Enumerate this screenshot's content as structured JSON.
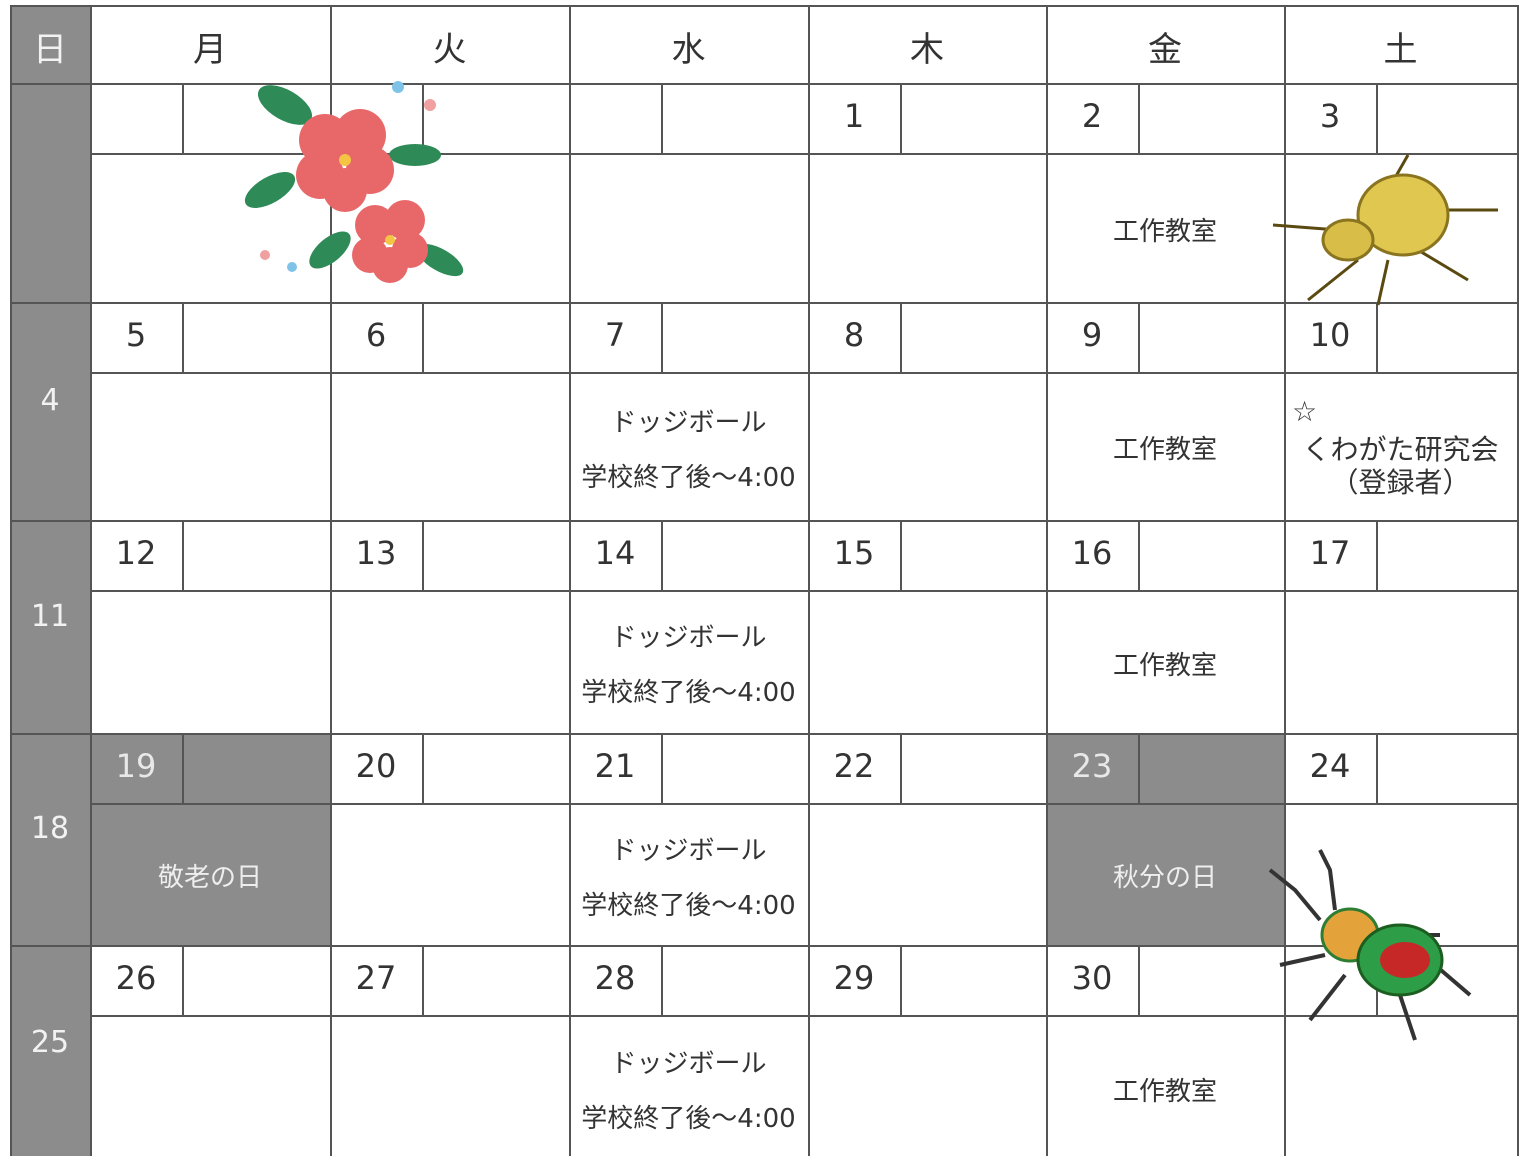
{
  "header": {
    "days": [
      "日",
      "月",
      "火",
      "水",
      "木",
      "金",
      "土"
    ]
  },
  "weeks": [
    {
      "days": [
        null,
        null,
        null,
        {
          "date": "1"
        },
        {
          "date": "2",
          "events": [
            "工作教室"
          ]
        },
        {
          "date": "3"
        }
      ]
    },
    {
      "sunday": "4",
      "days": [
        {
          "date": "5"
        },
        {
          "date": "6"
        },
        {
          "date": "7",
          "events": [
            "ドッジボール",
            "学校終了後〜4:00"
          ]
        },
        {
          "date": "8"
        },
        {
          "date": "9",
          "events": [
            "工作教室"
          ]
        },
        {
          "date": "10",
          "events": [
            "☆",
            "くわがた研究会",
            "（登録者）"
          ]
        }
      ]
    },
    {
      "sunday": "11",
      "days": [
        {
          "date": "12"
        },
        {
          "date": "13"
        },
        {
          "date": "14",
          "events": [
            "ドッジボール",
            "学校終了後〜4:00"
          ]
        },
        {
          "date": "15"
        },
        {
          "date": "16",
          "events": [
            "工作教室"
          ]
        },
        {
          "date": "17"
        }
      ]
    },
    {
      "sunday": "18",
      "days": [
        {
          "date": "19",
          "holiday": true,
          "events": [
            "敬老の日"
          ]
        },
        {
          "date": "20"
        },
        {
          "date": "21",
          "events": [
            "ドッジボール",
            "学校終了後〜4:00"
          ]
        },
        {
          "date": "22"
        },
        {
          "date": "23",
          "holiday": true,
          "events": [
            "秋分の日"
          ]
        },
        {
          "date": "24"
        }
      ]
    },
    {
      "sunday": "25",
      "days": [
        {
          "date": "26"
        },
        {
          "date": "27"
        },
        {
          "date": "28",
          "events": [
            "ドッジボール",
            "学校終了後〜4:00"
          ]
        },
        {
          "date": "29"
        },
        {
          "date": "30",
          "events": [
            "工作教室"
          ]
        },
        null
      ]
    }
  ]
}
